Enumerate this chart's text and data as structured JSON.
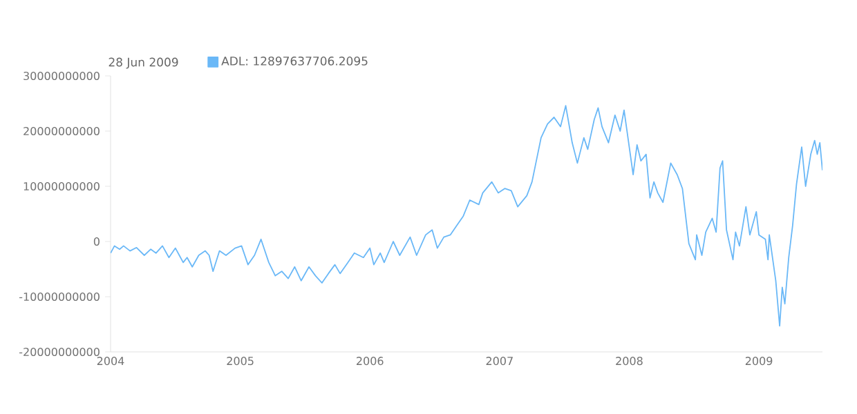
{
  "chart_data": {
    "type": "line",
    "annotations": [
      "28 Jun 2009"
    ],
    "legend": "top left",
    "xlim": [
      2004,
      2009.49
    ],
    "xticks": [
      2004,
      2005,
      2006,
      2007,
      2008,
      2009
    ],
    "ylim": [
      -20000000000,
      30000000000
    ],
    "yticks": [
      -20000000000,
      -10000000000,
      0,
      10000000000,
      20000000000,
      30000000000
    ],
    "x": [
      2004.0,
      2004.03,
      2004.07,
      2004.1,
      2004.15,
      2004.2,
      2004.26,
      2004.31,
      2004.35,
      2004.4,
      2004.45,
      2004.5,
      2004.53,
      2004.56,
      2004.59,
      2004.63,
      2004.68,
      2004.73,
      2004.76,
      2004.79,
      2004.84,
      2004.89,
      2004.96,
      2005.01,
      2005.06,
      2005.11,
      2005.16,
      2005.22,
      2005.27,
      2005.32,
      2005.37,
      2005.42,
      2005.47,
      2005.53,
      2005.58,
      2005.63,
      2005.68,
      2005.73,
      2005.77,
      2005.83,
      2005.88,
      2005.95,
      2006.0,
      2006.03,
      2006.08,
      2006.11,
      2006.18,
      2006.23,
      2006.31,
      2006.36,
      2006.43,
      2006.48,
      2006.52,
      2006.57,
      2006.62,
      2006.67,
      2006.72,
      2006.77,
      2006.84,
      2006.87,
      2006.94,
      2006.99,
      2007.04,
      2007.09,
      2007.14,
      2007.21,
      2007.25,
      2007.32,
      2007.37,
      2007.42,
      2007.47,
      2007.51,
      2007.56,
      2007.6,
      2007.65,
      2007.68,
      2007.73,
      2007.76,
      2007.79,
      2007.84,
      2007.89,
      2007.93,
      2007.96,
      2007.99,
      2008.03,
      2008.06,
      2008.09,
      2008.13,
      2008.16,
      2008.19,
      2008.22,
      2008.26,
      2008.32,
      2008.37,
      2008.41,
      2008.46,
      2008.51,
      2008.52,
      2008.56,
      2008.59,
      2008.64,
      2008.67,
      2008.7,
      2008.72,
      2008.75,
      2008.8,
      2008.82,
      2008.85,
      2008.9,
      2008.93,
      2008.98,
      2009.0,
      2009.05,
      2009.07,
      2009.08,
      2009.13,
      2009.16,
      2009.18,
      2009.2,
      2009.23,
      2009.26,
      2009.29,
      2009.33,
      2009.36,
      2009.4,
      2009.43,
      2009.45,
      2009.47,
      2009.49
    ],
    "series": [
      {
        "name": "ADL: 12897637706.2095",
        "color": "#6ab8f7",
        "values": [
          -2100000000.0,
          -800000000.0,
          -1400000000.0,
          -800000000.0,
          -1700000000.0,
          -1100000000.0,
          -2500000000.0,
          -1400000000.0,
          -2100000000.0,
          -800000000.0,
          -2900000000.0,
          -1200000000.0,
          -2500000000.0,
          -3800000000.0,
          -2900000000.0,
          -4600000000.0,
          -2500000000.0,
          -1700000000.0,
          -2500000000.0,
          -5400000000.0,
          -1700000000.0,
          -2500000000.0,
          -1200000000.0,
          -800000000.0,
          -4200000000.0,
          -2500000000.0,
          400000000.0,
          -3800000000.0,
          -6200000000.0,
          -5400000000.0,
          -6700000000.0,
          -4600000000.0,
          -7100000000.0,
          -4600000000.0,
          -6200000000.0,
          -7500000000.0,
          -5800000000.0,
          -4200000000.0,
          -5800000000.0,
          -3800000000.0,
          -2100000000.0,
          -2900000000.0,
          -1200000000.0,
          -4200000000.0,
          -2100000000.0,
          -3800000000.0,
          0.0,
          -2500000000.0,
          800000000.0,
          -2500000000.0,
          1200000000.0,
          2100000000.0,
          -1200000000.0,
          800000000.0,
          1200000000.0,
          2900000000.0,
          4600000000.0,
          7500000000.0,
          6700000000.0,
          8800000000.0,
          10800000000.0,
          8800000000.0,
          9600000000.0,
          9200000000.0,
          6300000000.0,
          8300000000.0,
          10800000000.0,
          18800000000.0,
          21300000000.0,
          22500000000.0,
          20800000000.0,
          24600000000.0,
          17900000000.0,
          14200000000.0,
          18800000000.0,
          16700000000.0,
          22100000000.0,
          24200000000.0,
          20800000000.0,
          17900000000.0,
          22900000000.0,
          20000000000.0,
          23800000000.0,
          18800000000.0,
          12100000000.0,
          17500000000.0,
          14600000000.0,
          15800000000.0,
          7900000000.0,
          10800000000.0,
          8800000000.0,
          7100000000.0,
          14200000000.0,
          12100000000.0,
          9600000000.0,
          -400000000.0,
          -3300000000.0,
          1200000000.0,
          -2500000000.0,
          1700000000.0,
          4200000000.0,
          1700000000.0,
          13300000000.0,
          14600000000.0,
          2100000000.0,
          -3300000000.0,
          1700000000.0,
          -800000000.0,
          6300000000.0,
          1200000000.0,
          5400000000.0,
          1200000000.0,
          400000000.0,
          -3300000000.0,
          1200000000.0,
          -7100000000.0,
          -15300000000.0,
          -8300000000.0,
          -11300000000.0,
          -2900000000.0,
          2900000000.0,
          10400000000.0,
          17100000000.0,
          10000000000.0,
          15800000000.0,
          18300000000.0,
          15800000000.0,
          17900000000.0,
          12897637706.2095
        ]
      }
    ]
  }
}
